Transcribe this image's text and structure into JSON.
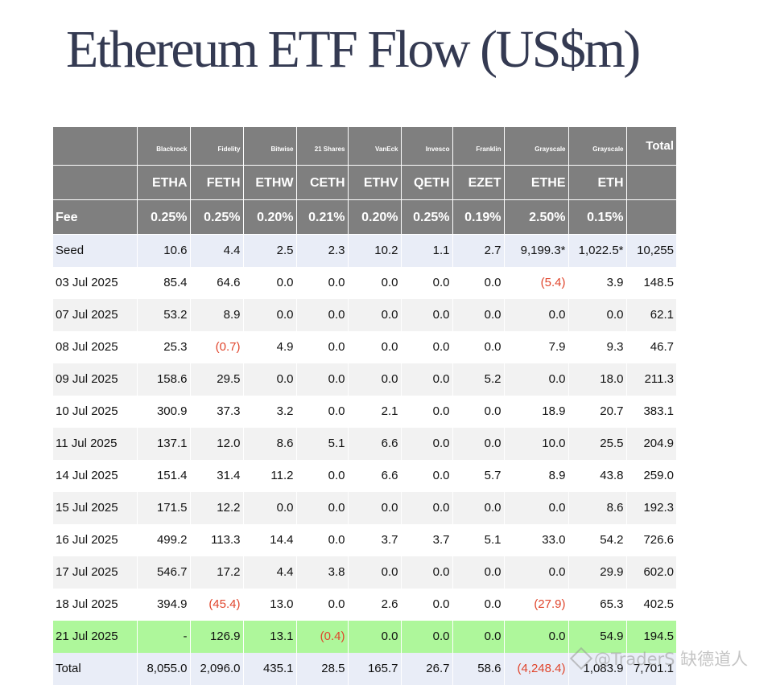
{
  "title": "Ethereum ETF Flow (US$m)",
  "header": {
    "issuers": [
      "Blackrock",
      "Fidelity",
      "Bitwise",
      "21 Shares",
      "VanEck",
      "Invesco",
      "Franklin",
      "Grayscale",
      "Grayscale"
    ],
    "total_label": "Total",
    "tickers": [
      "ETHA",
      "FETH",
      "ETHW",
      "CETH",
      "ETHV",
      "QETH",
      "EZET",
      "ETHE",
      "ETH"
    ],
    "fee_label": "Fee",
    "fees": [
      "0.25%",
      "0.25%",
      "0.20%",
      "0.21%",
      "0.20%",
      "0.25%",
      "0.19%",
      "2.50%",
      "0.15%"
    ]
  },
  "rows": [
    {
      "label": "Seed",
      "values": [
        "10.6",
        "4.4",
        "2.5",
        "2.3",
        "10.2",
        "1.1",
        "2.7",
        "9,199.3*",
        "1,022.5*",
        "10,255"
      ],
      "style": "seed"
    },
    {
      "label": "03 Jul 2025",
      "values": [
        "85.4",
        "64.6",
        "0.0",
        "0.0",
        "0.0",
        "0.0",
        "0.0",
        "(5.4)",
        "3.9",
        "148.5"
      ],
      "style": "white"
    },
    {
      "label": "07 Jul 2025",
      "values": [
        "53.2",
        "8.9",
        "0.0",
        "0.0",
        "0.0",
        "0.0",
        "0.0",
        "0.0",
        "0.0",
        "62.1"
      ],
      "style": "grey"
    },
    {
      "label": "08 Jul 2025",
      "values": [
        "25.3",
        "(0.7)",
        "4.9",
        "0.0",
        "0.0",
        "0.0",
        "0.0",
        "7.9",
        "9.3",
        "46.7"
      ],
      "style": "white"
    },
    {
      "label": "09 Jul 2025",
      "values": [
        "158.6",
        "29.5",
        "0.0",
        "0.0",
        "0.0",
        "0.0",
        "5.2",
        "0.0",
        "18.0",
        "211.3"
      ],
      "style": "grey"
    },
    {
      "label": "10 Jul 2025",
      "values": [
        "300.9",
        "37.3",
        "3.2",
        "0.0",
        "2.1",
        "0.0",
        "0.0",
        "18.9",
        "20.7",
        "383.1"
      ],
      "style": "white"
    },
    {
      "label": "11 Jul 2025",
      "values": [
        "137.1",
        "12.0",
        "8.6",
        "5.1",
        "6.6",
        "0.0",
        "0.0",
        "10.0",
        "25.5",
        "204.9"
      ],
      "style": "grey"
    },
    {
      "label": "14 Jul 2025",
      "values": [
        "151.4",
        "31.4",
        "11.2",
        "0.0",
        "6.6",
        "0.0",
        "5.7",
        "8.9",
        "43.8",
        "259.0"
      ],
      "style": "white"
    },
    {
      "label": "15 Jul 2025",
      "values": [
        "171.5",
        "12.2",
        "0.0",
        "0.0",
        "0.0",
        "0.0",
        "0.0",
        "0.0",
        "8.6",
        "192.3"
      ],
      "style": "grey"
    },
    {
      "label": "16 Jul 2025",
      "values": [
        "499.2",
        "113.3",
        "14.4",
        "0.0",
        "3.7",
        "3.7",
        "5.1",
        "33.0",
        "54.2",
        "726.6"
      ],
      "style": "white"
    },
    {
      "label": "17 Jul 2025",
      "values": [
        "546.7",
        "17.2",
        "4.4",
        "3.8",
        "0.0",
        "0.0",
        "0.0",
        "0.0",
        "29.9",
        "602.0"
      ],
      "style": "grey"
    },
    {
      "label": "18 Jul 2025",
      "values": [
        "394.9",
        "(45.4)",
        "13.0",
        "0.0",
        "2.6",
        "0.0",
        "0.0",
        "(27.9)",
        "65.3",
        "402.5"
      ],
      "style": "white"
    },
    {
      "label": "21 Jul 2025",
      "values": [
        "-",
        "126.9",
        "13.1",
        "(0.4)",
        "0.0",
        "0.0",
        "0.0",
        "0.0",
        "54.9",
        "194.5"
      ],
      "style": "green"
    },
    {
      "label": "Total",
      "values": [
        "8,055.0",
        "2,096.0",
        "435.1",
        "28.5",
        "165.7",
        "26.7",
        "58.6",
        "(4,248.4)",
        "1,083.9",
        "7,701.1"
      ],
      "style": "total"
    }
  ],
  "colors": {
    "header_bg": "#7f7f7f",
    "negative": "#e0452c",
    "highlight_row": "#aef79b",
    "seed_total_bg": "#e9edf7"
  },
  "watermark": "@TraderS 缺德道人"
}
